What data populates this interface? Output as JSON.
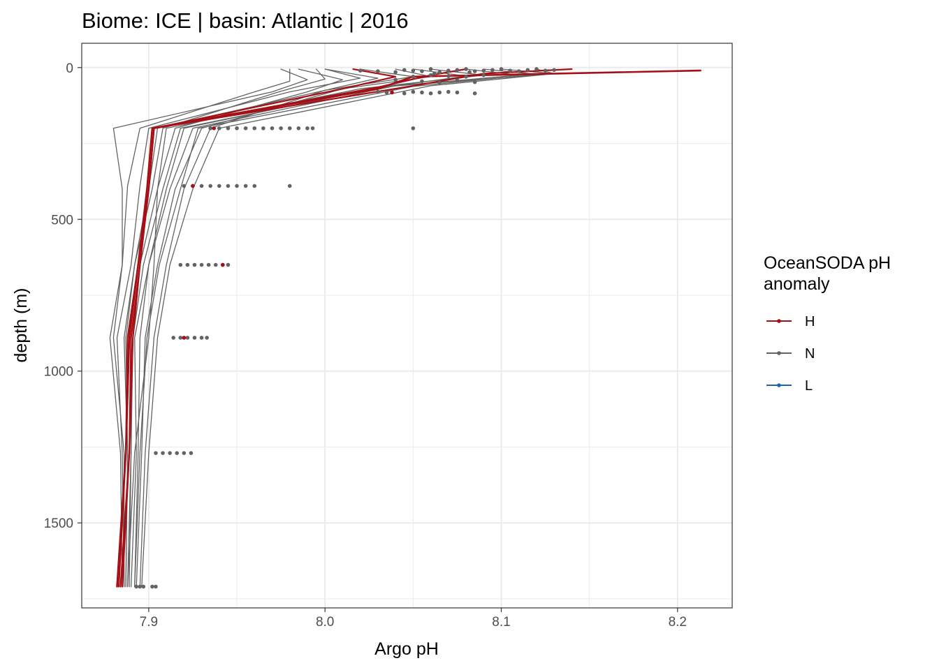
{
  "chart_data": {
    "type": "line",
    "title": "Biome: ICE | basin: Atlantic  |  2016",
    "xlabel": "Argo pH",
    "ylabel": "depth (m)",
    "xlim": [
      7.862,
      8.231
    ],
    "ylim": [
      1780,
      -80
    ],
    "y_reversed": true,
    "xticks": [
      7.9,
      8.0,
      8.1,
      8.2
    ],
    "xtick_labels": [
      "7.9",
      "8.0",
      "8.1",
      "8.2"
    ],
    "yticks": [
      0,
      500,
      1000,
      1500
    ],
    "ytick_labels": [
      "0",
      "500",
      "1000",
      "1500"
    ],
    "grid": true,
    "legend": {
      "title": "OceanSODA pH\nanomaly",
      "title_lines": [
        "OceanSODA pH",
        "anomaly"
      ],
      "placement": "right",
      "entries": [
        {
          "label": "H",
          "color": "#A50F15"
        },
        {
          "label": "N",
          "color": "#636363"
        },
        {
          "label": "L",
          "color": "#2166AC"
        }
      ]
    },
    "colors": {
      "H": "#A50F15",
      "N": "#636363",
      "L": "#2166AC"
    },
    "series": [
      {
        "anomaly": "H",
        "profile": 1,
        "x": [
          8.213,
          8.05,
          8.03,
          7.902,
          7.899,
          7.894,
          7.889,
          7.887,
          7.882
        ],
        "y": [
          10,
          30,
          70,
          200,
          400,
          650,
          890,
          1270,
          1710
        ]
      },
      {
        "anomaly": "H",
        "profile": 2,
        "x": [
          8.14,
          8.09,
          8.05,
          7.903,
          7.9,
          7.895,
          7.89,
          7.889,
          7.884
        ],
        "y": [
          5,
          20,
          60,
          200,
          400,
          650,
          890,
          1270,
          1710
        ]
      },
      {
        "anomaly": "H",
        "profile": 3,
        "x": [
          8.08,
          8.06,
          8.03,
          7.903,
          7.9,
          7.895,
          7.891,
          7.889,
          7.885
        ],
        "y": [
          5,
          25,
          65,
          200,
          400,
          650,
          890,
          1270,
          1710
        ]
      },
      {
        "anomaly": "H",
        "profile": 4,
        "x": [
          8.016,
          8.04,
          8.01,
          7.903,
          7.9,
          7.894,
          7.888,
          7.887,
          7.883
        ],
        "y": [
          5,
          30,
          70,
          200,
          400,
          650,
          890,
          1270,
          1710
        ]
      },
      {
        "anomaly": "N",
        "profile": 1,
        "x": [
          7.975,
          7.99,
          7.97,
          7.88,
          7.885,
          7.885,
          7.88,
          7.886,
          7.886
        ],
        "y": [
          5,
          40,
          80,
          200,
          400,
          650,
          890,
          1270,
          1710
        ]
      },
      {
        "anomaly": "N",
        "profile": 2,
        "x": [
          7.98,
          7.98,
          7.96,
          7.895,
          7.888,
          7.885,
          7.878,
          7.884,
          7.885
        ],
        "y": [
          5,
          45,
          80,
          200,
          390,
          650,
          890,
          1270,
          1710
        ]
      },
      {
        "anomaly": "N",
        "profile": 3,
        "x": [
          8.0,
          8.02,
          7.98,
          7.9,
          7.895,
          7.89,
          7.882,
          7.885,
          7.886
        ],
        "y": [
          5,
          35,
          80,
          200,
          390,
          650,
          890,
          1270,
          1710
        ]
      },
      {
        "anomaly": "N",
        "profile": 4,
        "x": [
          8.02,
          8.05,
          8.0,
          7.905,
          7.9,
          7.892,
          7.886,
          7.888,
          7.887
        ],
        "y": [
          5,
          30,
          75,
          200,
          400,
          650,
          890,
          1270,
          1710
        ]
      },
      {
        "anomaly": "N",
        "profile": 5,
        "x": [
          8.06,
          8.09,
          8.02,
          7.91,
          7.905,
          7.895,
          7.89,
          7.89,
          7.889
        ],
        "y": [
          5,
          25,
          70,
          200,
          400,
          650,
          890,
          1270,
          1710
        ]
      },
      {
        "anomaly": "N",
        "profile": 6,
        "x": [
          8.1,
          8.13,
          8.03,
          7.92,
          7.91,
          7.9,
          7.892,
          7.893,
          7.89
        ],
        "y": [
          5,
          20,
          65,
          200,
          400,
          650,
          890,
          1270,
          1710
        ]
      },
      {
        "anomaly": "N",
        "profile": 7,
        "x": [
          8.08,
          8.11,
          8.04,
          7.925,
          7.912,
          7.9,
          7.895,
          7.894,
          7.892
        ],
        "y": [
          5,
          25,
          60,
          200,
          400,
          650,
          890,
          1270,
          1710
        ]
      },
      {
        "anomaly": "N",
        "profile": 8,
        "x": [
          8.04,
          8.06,
          8.01,
          7.93,
          7.915,
          7.905,
          7.898,
          7.896,
          7.893
        ],
        "y": [
          5,
          30,
          70,
          200,
          400,
          650,
          890,
          1270,
          1710
        ]
      },
      {
        "anomaly": "N",
        "profile": 9,
        "x": [
          8.0,
          8.03,
          8.0,
          7.935,
          7.92,
          7.91,
          7.903,
          7.898,
          7.895
        ],
        "y": [
          5,
          35,
          75,
          200,
          400,
          650,
          890,
          1270,
          1710
        ]
      },
      {
        "anomaly": "N",
        "profile": 10,
        "x": [
          7.985,
          8.01,
          7.99,
          7.915,
          7.905,
          7.903,
          7.9,
          7.892,
          7.888
        ],
        "y": [
          5,
          40,
          80,
          200,
          400,
          650,
          890,
          1270,
          1710
        ]
      },
      {
        "anomaly": "N",
        "profile": 11,
        "x": [
          8.12,
          8.13,
          8.06,
          7.94,
          7.925,
          7.912,
          7.905,
          7.9,
          7.896
        ],
        "y": [
          5,
          20,
          60,
          200,
          400,
          650,
          890,
          1270,
          1710
        ]
      },
      {
        "anomaly": "N",
        "profile": 12,
        "x": [
          8.05,
          8.08,
          8.03,
          7.918,
          7.908,
          7.897,
          7.891,
          7.89,
          7.888
        ],
        "y": [
          5,
          28,
          68,
          200,
          400,
          650,
          890,
          1270,
          1710
        ]
      },
      {
        "anomaly": "N",
        "profile": 13,
        "x": [
          7.995,
          8.0,
          7.975,
          7.908,
          7.902,
          7.892,
          7.887,
          7.888,
          7.887
        ],
        "y": [
          5,
          38,
          78,
          200,
          400,
          650,
          890,
          1270,
          1710
        ]
      },
      {
        "anomaly": "N",
        "profile": 14,
        "x": [
          8.09,
          8.12,
          8.05,
          7.928,
          7.918,
          7.906,
          7.899,
          7.895,
          7.892
        ],
        "y": [
          5,
          22,
          62,
          200,
          400,
          650,
          890,
          1270,
          1710
        ]
      }
    ],
    "points": {
      "N": {
        "x": [
          8.02,
          8.03,
          8.04,
          8.045,
          8.05,
          8.055,
          8.06,
          8.062,
          8.065,
          8.07,
          8.075,
          8.08,
          8.082,
          8.085,
          8.09,
          8.095,
          8.1,
          8.105,
          8.11,
          8.115,
          8.12,
          8.125,
          8.13,
          8.05,
          8.06,
          8.07,
          8.08,
          8.09,
          8.04,
          8.055,
          8.065,
          8.075,
          8.085,
          8.03,
          8.035,
          8.045,
          8.05,
          8.055,
          8.06,
          8.065,
          8.07,
          8.075,
          8.085,
          7.935,
          7.94,
          7.945,
          7.95,
          7.955,
          7.96,
          7.965,
          7.97,
          7.975,
          7.98,
          7.985,
          7.99,
          7.993,
          8.05,
          7.92,
          7.925,
          7.93,
          7.935,
          7.94,
          7.945,
          7.95,
          7.955,
          7.96,
          7.98,
          7.918,
          7.922,
          7.926,
          7.93,
          7.934,
          7.938,
          7.942,
          7.945,
          7.914,
          7.918,
          7.922,
          7.926,
          7.93,
          7.933,
          7.904,
          7.908,
          7.912,
          7.916,
          7.92,
          7.924,
          7.893,
          7.895,
          7.897,
          7.902,
          7.904
        ],
        "y": [
          10,
          12,
          15,
          8,
          10,
          12,
          5,
          20,
          15,
          10,
          8,
          5,
          15,
          12,
          10,
          8,
          5,
          10,
          12,
          8,
          5,
          10,
          8,
          30,
          25,
          28,
          30,
          25,
          40,
          45,
          50,
          42,
          48,
          80,
          82,
          85,
          80,
          82,
          85,
          82,
          80,
          82,
          85,
          200,
          200,
          200,
          200,
          200,
          200,
          200,
          200,
          200,
          200,
          200,
          200,
          200,
          200,
          390,
          390,
          390,
          390,
          390,
          390,
          390,
          390,
          390,
          390,
          650,
          650,
          650,
          650,
          650,
          650,
          650,
          650,
          890,
          890,
          890,
          890,
          890,
          890,
          1270,
          1270,
          1270,
          1270,
          1270,
          1270,
          1710,
          1710,
          1710,
          1710,
          1710
        ]
      },
      "H": {
        "x": [
          8.038,
          7.937,
          7.925,
          7.942,
          7.92
        ],
        "y": [
          82,
          200,
          390,
          650,
          890
        ]
      }
    }
  }
}
